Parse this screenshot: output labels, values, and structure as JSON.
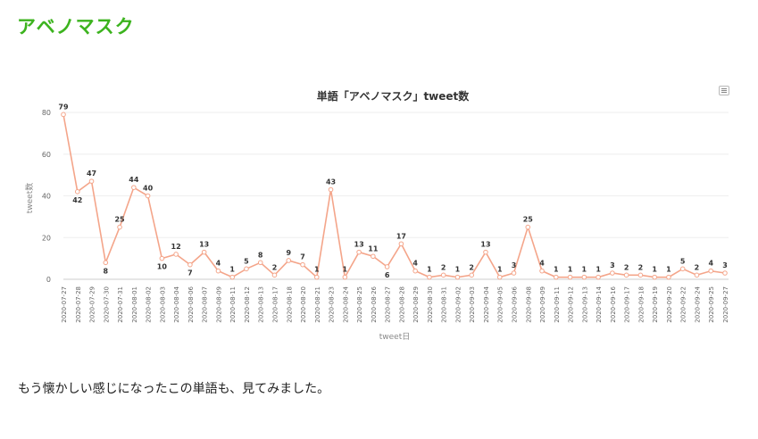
{
  "page": {
    "heading": "アベノマスク",
    "caption": "もう懐かしい感じになったこの単語も、見てみました。",
    "menu_icon": "hamburger-menu-icon"
  },
  "colors": {
    "heading": "#3cb31e",
    "series": "#f4a58a",
    "axis_text": "#666666"
  },
  "chart_data": {
    "type": "line",
    "title": "単語「アベノマスク」tweet数",
    "xlabel": "tweet日",
    "ylabel": "tweet数",
    "ylim": [
      0,
      80
    ],
    "yticks": [
      0,
      20,
      40,
      60,
      80
    ],
    "grid": true,
    "legend": "none",
    "categories": [
      "2020-07-27",
      "2020-07-28",
      "2020-07-29",
      "2020-07-30",
      "2020-07-31",
      "2020-08-01",
      "2020-08-02",
      "2020-08-03",
      "2020-08-04",
      "2020-08-06",
      "2020-08-07",
      "2020-08-09",
      "2020-08-11",
      "2020-08-12",
      "2020-08-13",
      "2020-08-17",
      "2020-08-18",
      "2020-08-20",
      "2020-08-21",
      "2020-08-23",
      "2020-08-24",
      "2020-08-25",
      "2020-08-26",
      "2020-08-27",
      "2020-08-28",
      "2020-08-29",
      "2020-08-30",
      "2020-08-31",
      "2020-09-02",
      "2020-09-03",
      "2020-09-04",
      "2020-09-05",
      "2020-09-06",
      "2020-09-08",
      "2020-09-09",
      "2020-09-11",
      "2020-09-12",
      "2020-09-13",
      "2020-09-14",
      "2020-09-16",
      "2020-09-17",
      "2020-09-18",
      "2020-09-19",
      "2020-09-20",
      "2020-09-22",
      "2020-09-24",
      "2020-09-25",
      "2020-09-27"
    ],
    "series": [
      {
        "values": [
          79,
          42,
          47,
          8,
          25,
          44,
          40,
          10,
          12,
          7,
          13,
          4,
          1,
          5,
          8,
          2,
          9,
          7,
          1,
          43,
          1,
          13,
          11,
          6,
          17,
          4,
          1,
          2,
          1,
          2,
          13,
          1,
          3,
          25,
          4,
          1,
          1,
          1,
          1,
          3,
          2,
          2,
          1,
          1,
          5,
          2,
          4,
          3
        ]
      }
    ]
  }
}
